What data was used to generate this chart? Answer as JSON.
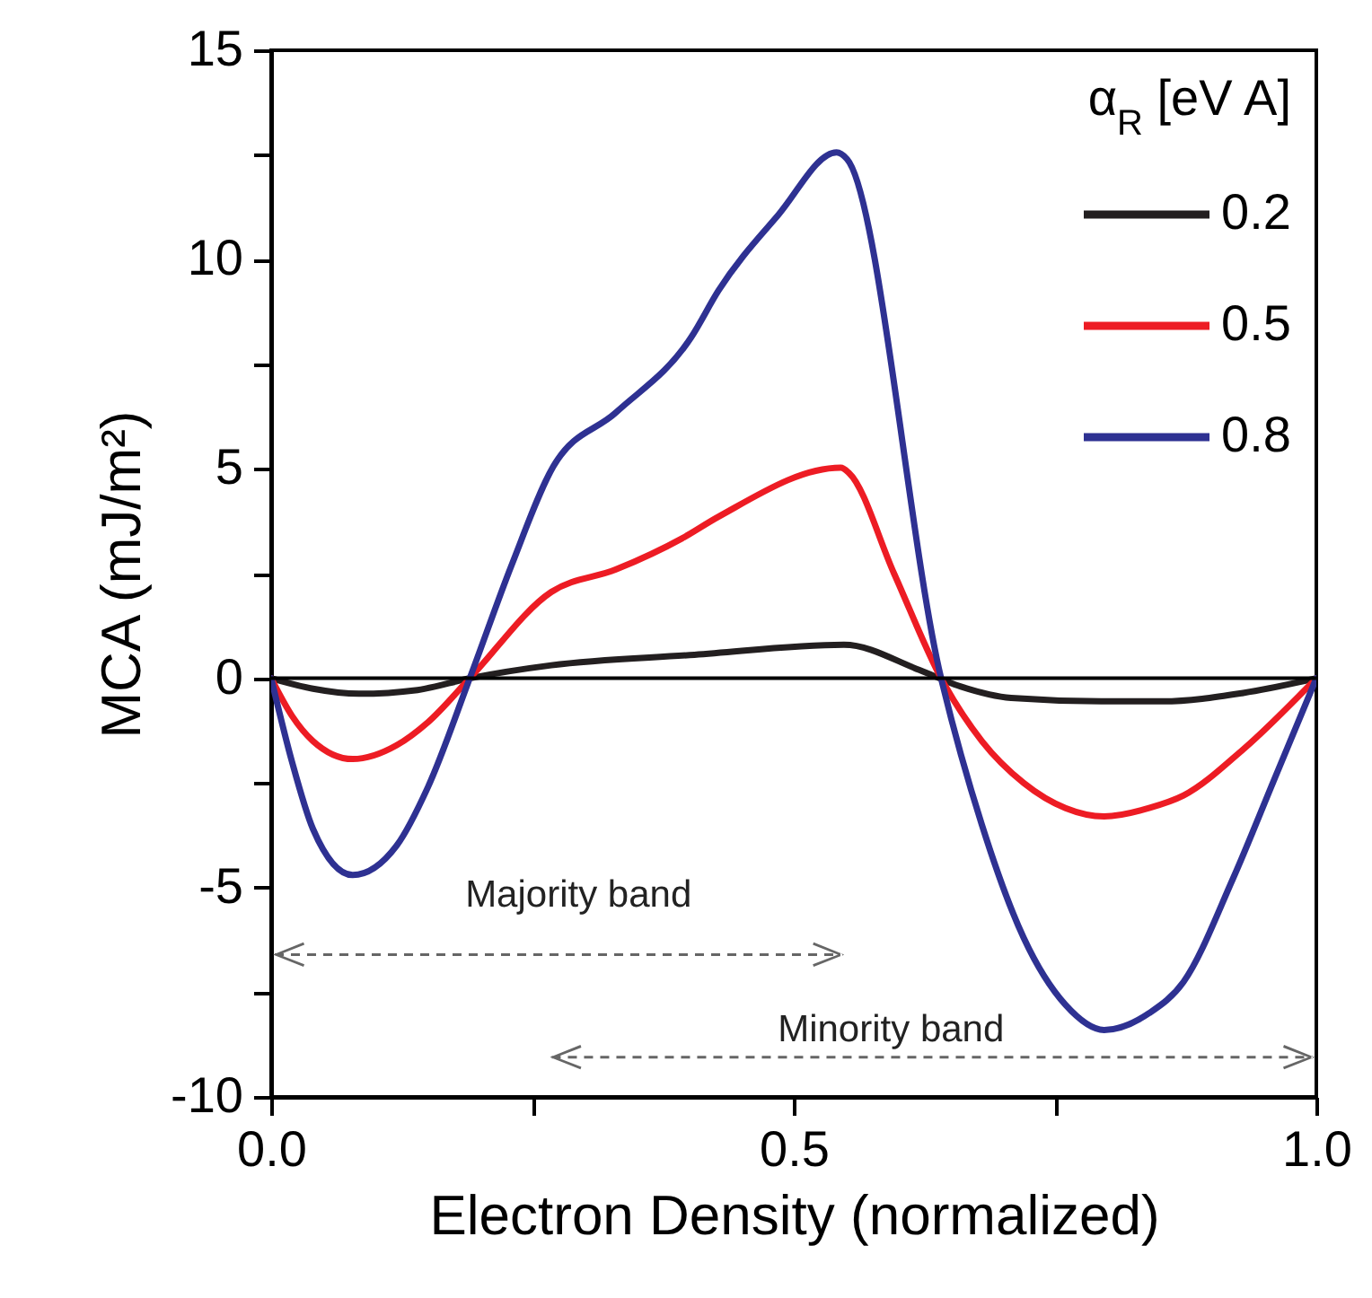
{
  "chart_data": {
    "type": "line",
    "xlabel": "Electron Density (normalized)",
    "ylabel": "MCA (mJ/m²)",
    "legend_title": "α$_{R}$ [eV A]",
    "legend": "top right",
    "grid": false,
    "xlim": [
      0,
      1
    ],
    "xticks": [
      {
        "value": 0,
        "label": "0.0"
      },
      {
        "value": 0.25,
        "label": null
      },
      0.5,
      {
        "value": 0.75,
        "label": null
      },
      {
        "value": 1,
        "label": "1.0"
      }
    ],
    "ylim": [
      -10,
      15
    ],
    "yticks": [
      -10,
      {
        "value": -7.5,
        "label": null
      },
      -5,
      {
        "value": -2.5,
        "label": null
      },
      0,
      {
        "value": 2.5,
        "label": null
      },
      5,
      {
        "value": 7.5,
        "label": null
      },
      10,
      {
        "value": 12.5,
        "label": null
      },
      15
    ],
    "ref_lines": [
      {
        "axis": "y",
        "value": 0,
        "color": "#000000"
      }
    ],
    "annotations": [
      "Majority band",
      "Minority band"
    ],
    "series": [
      {
        "name": "0.2",
        "color": "#231f20",
        "x": [
          0,
          0.04,
          0.084,
          0.14,
          0.19,
          0.268,
          0.405,
          0.548,
          0.62,
          0.66,
          0.708,
          0.794,
          0.853,
          0.93,
          1.0
        ],
        "values": [
          0,
          -0.25,
          -0.37,
          -0.28,
          0,
          0.31,
          0.56,
          0.8,
          0.2,
          -0.2,
          -0.47,
          -0.55,
          -0.55,
          -0.35,
          0
        ]
      },
      {
        "name": "0.5",
        "color": "#ed1c24",
        "x": [
          0,
          0.02,
          0.04,
          0.078,
          0.12,
          0.15,
          0.19,
          0.268,
          0.33,
          0.393,
          0.428,
          0.545,
          0.553,
          0.596,
          0.641,
          0.68,
          0.72,
          0.76,
          0.797,
          0.84,
          0.873,
          0.93,
          1.0
        ],
        "values": [
          0,
          -0.9,
          -1.5,
          -1.93,
          -1.6,
          -1.05,
          0,
          2.06,
          2.6,
          3.34,
          3.86,
          5.03,
          4.9,
          2.5,
          0,
          -1.5,
          -2.5,
          -3.1,
          -3.3,
          -3.1,
          -2.8,
          -1.7,
          0
        ]
      },
      {
        "name": "0.8",
        "color": "#2e3192",
        "x": [
          0,
          0.02,
          0.04,
          0.078,
          0.12,
          0.15,
          0.19,
          0.23,
          0.27,
          0.33,
          0.402,
          0.428,
          0.485,
          0.541,
          0.551,
          0.641,
          0.68,
          0.72,
          0.76,
          0.797,
          0.84,
          0.873,
          0.92,
          0.96,
          1.0
        ],
        "values": [
          0,
          -2.0,
          -3.6,
          -4.7,
          -4.0,
          -2.6,
          0,
          2.7,
          5.06,
          6.35,
          8.15,
          9.26,
          11.06,
          12.56,
          12.4,
          0,
          -3.5,
          -6.2,
          -7.8,
          -8.4,
          -8.0,
          -7.25,
          -4.8,
          -2.4,
          0
        ]
      }
    ]
  }
}
